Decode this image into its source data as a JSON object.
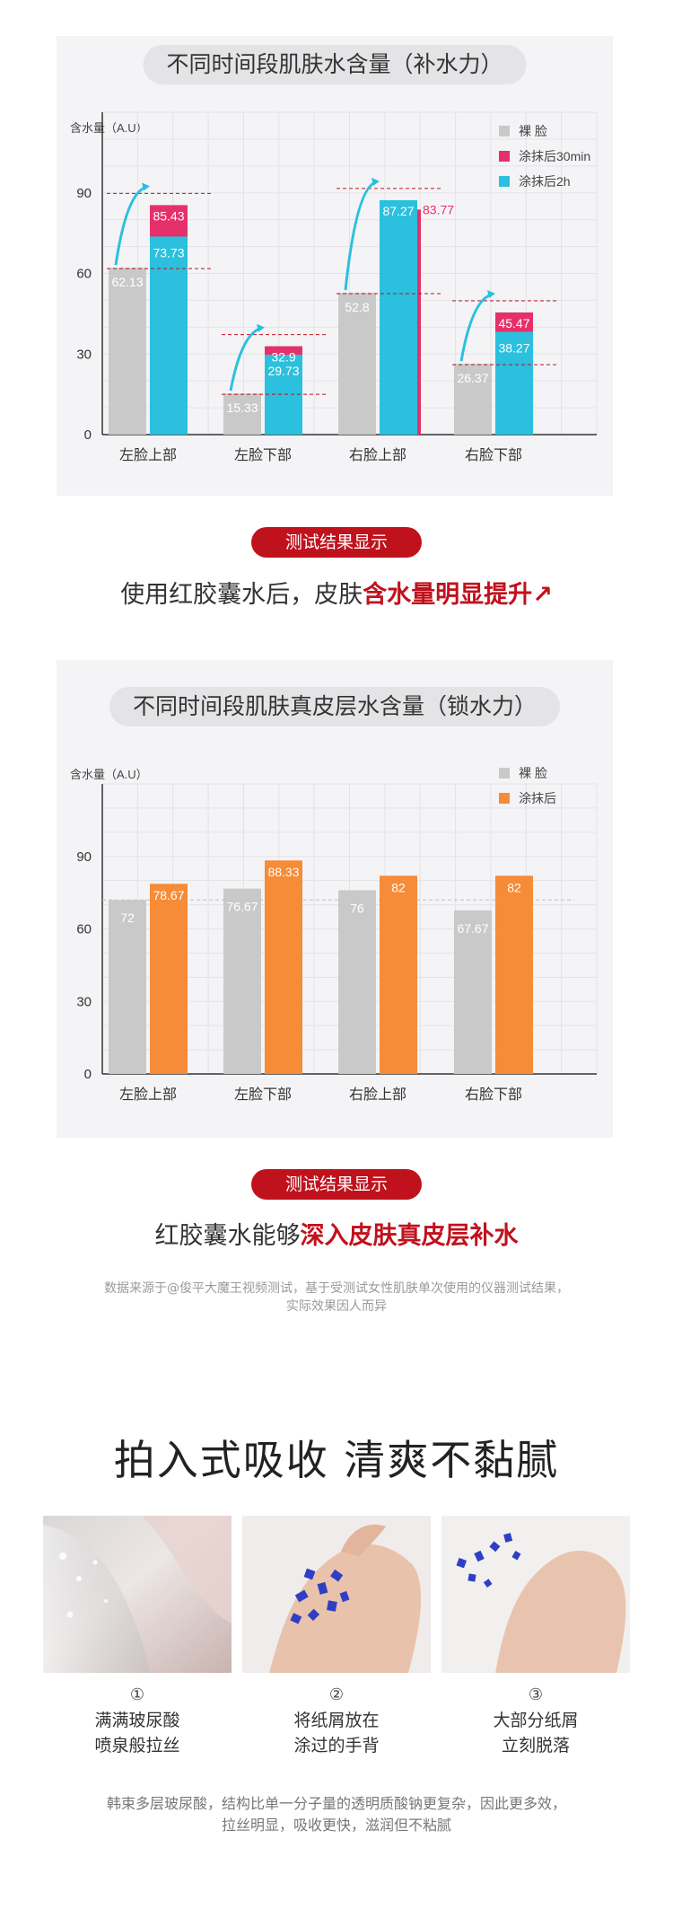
{
  "charts": [
    {
      "title": "不同时间段肌肤水含量（补水力）",
      "ylabel": "含水量（A.U）",
      "legend": [
        {
          "label": "裸 脸",
          "color": "#c9c9c9"
        },
        {
          "label": "涂抹后30min",
          "color": "#e6306b"
        },
        {
          "label": "涂抹后2h",
          "color": "#2bc0dd"
        }
      ],
      "result_pill": "测试结果显示",
      "headline_plain": "使用红胶囊水后，皮肤",
      "headline_highlight": "含水量明显提升",
      "headline_arrow": "↗"
    },
    {
      "title": "不同时间段肌肤真皮层水含量（锁水力）",
      "ylabel": "含水量（A.U）",
      "legend": [
        {
          "label": "裸 脸",
          "color": "#c9c9c9"
        },
        {
          "label": "涂抹后",
          "color": "#f68b38"
        }
      ],
      "result_pill": "测试结果显示",
      "headline_plain": "红胶囊水能够",
      "headline_highlight": "深入皮肤真皮层补水"
    }
  ],
  "chart_data": [
    {
      "type": "bar",
      "title": "不同时间段肌肤水含量（补水力）",
      "ylabel": "含水量（A.U）",
      "xlabel": "",
      "categories": [
        "左脸上部",
        "左脸下部",
        "右脸上部",
        "右脸下部"
      ],
      "ylim": [
        0,
        120
      ],
      "yticks": [
        0,
        30,
        60,
        90
      ],
      "grid": true,
      "legend_position": "top-right",
      "series": [
        {
          "name": "裸 脸",
          "values": [
            62.13,
            15.33,
            52.8,
            26.37
          ]
        },
        {
          "name": "涂抹后30min",
          "values": [
            85.43,
            32.9,
            83.77,
            45.47
          ]
        },
        {
          "name": "涂抹后2h",
          "values": [
            73.73,
            29.73,
            87.27,
            38.27
          ]
        }
      ]
    },
    {
      "type": "bar",
      "title": "不同时间段肌肤真皮层水含量（锁水力）",
      "ylabel": "含水量（A.U）",
      "xlabel": "",
      "categories": [
        "左脸上部",
        "左脸下部",
        "右脸上部",
        "右脸下部"
      ],
      "ylim": [
        0,
        120
      ],
      "yticks": [
        0,
        30,
        60,
        90
      ],
      "grid": true,
      "legend_position": "top-right",
      "series": [
        {
          "name": "裸 脸",
          "values": [
            72,
            76.67,
            76,
            67.67
          ]
        },
        {
          "name": "涂抹后",
          "values": [
            78.67,
            88.33,
            82,
            82
          ]
        }
      ]
    }
  ],
  "source_note_line1": "数据来源于@俊平大魔王视频测试，基于受测试女性肌肤单次使用的仪器测试结果，",
  "source_note_line2": "实际效果因人而异",
  "section_title": "拍入式吸收 清爽不黏腻",
  "steps": [
    {
      "num": "①",
      "line1": "满满玻尿酸",
      "line2": "喷泉般拉丝"
    },
    {
      "num": "②",
      "line1": "将纸屑放在",
      "line2": "涂过的手背"
    },
    {
      "num": "③",
      "line1": "大部分纸屑",
      "line2": "立刻脱落"
    }
  ],
  "footer_line1": "韩束多层玻尿酸，结构比单一分子量的透明质酸钠更复杂，因此更多效，",
  "footer_line2": "拉丝明显，吸收更快，滋润但不粘腻",
  "colors": {
    "accent_red": "#c0121d",
    "pink": "#e6306b",
    "cyan": "#2bc0dd",
    "orange": "#f68b38",
    "gray": "#c9c9c9"
  }
}
